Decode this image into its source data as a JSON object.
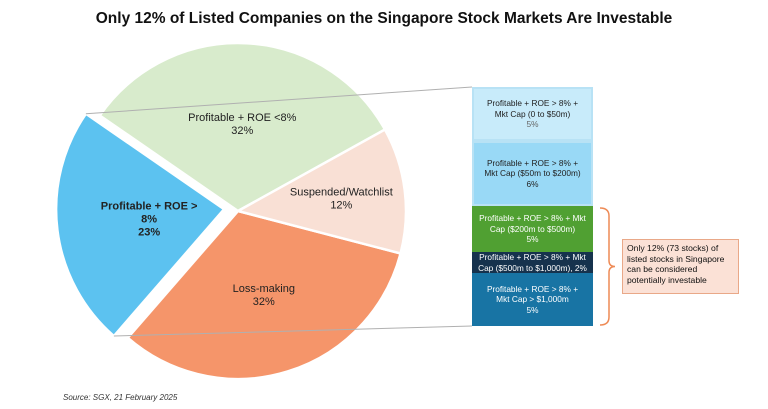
{
  "chart_data": {
    "type": "pie",
    "title": "Only 12% of Listed Companies on the Singapore Stock Markets Are Investable",
    "slices": [
      {
        "name": "Profitable + ROE <8%",
        "value": 32,
        "label": "32%",
        "color": "#d8ebcc"
      },
      {
        "name": "Profitable + ROE >8%",
        "value": 23,
        "label": "23%",
        "color": "#5cc2f0"
      },
      {
        "name": "Loss-making",
        "value": 32,
        "label": "32%",
        "color": "#f5956a"
      },
      {
        "name": "Suspended/Watchlist",
        "value": 12,
        "label": "12%",
        "color": "#f9e0d5"
      }
    ],
    "slice_label_lines": [
      [
        "Profitable + ROE <8%",
        "32%"
      ],
      [
        "Profitable + ROE >",
        "8%",
        "23%"
      ],
      [
        "Loss-making",
        "32%"
      ],
      [
        "Suspended/Watchlist",
        "12%"
      ]
    ],
    "breakdown_bar": {
      "parent": "Profitable + ROE >8%",
      "segments": [
        {
          "lines": [
            "Profitable + ROE > 8% +",
            "Mkt Cap (0 to $50m)",
            "5%"
          ],
          "value": 5,
          "color": "#c8ebfa",
          "text_color": "#222222",
          "pct_color": "#666666"
        },
        {
          "lines": [
            "Profitable + ROE > 8% +",
            "Mkt Cap ($50m to $200m)",
            "6%"
          ],
          "value": 6,
          "color": "#99d9f6",
          "text_color": "#222222",
          "pct_color": "#222222"
        },
        {
          "lines": [
            "Profitable + ROE > 8% + Mkt",
            "Cap ($200m to $500m)",
            "5%"
          ],
          "value": 5,
          "color": "#50a032",
          "text_color": "#ffffff",
          "pct_color": "#ffffff"
        },
        {
          "lines": [
            "Profitable + ROE > 8% + Mkt",
            "Cap ($500m to $1,000m), 2%"
          ],
          "value": 2,
          "color": "#16324d",
          "text_color": "#ffffff",
          "pct_color": "#ffffff"
        },
        {
          "lines": [
            "Profitable + ROE >  8% +",
            "Mkt Cap >  $1,000m",
            "5%"
          ],
          "value": 5,
          "color": "#1874a4",
          "text_color": "#ffffff",
          "pct_color": "#ffffff"
        }
      ]
    },
    "annotation": [
      "Only 12% (73 stocks) of",
      "listed stocks in Singapore",
      "can be considered",
      "potentially investable"
    ],
    "source": "Source: SGX, 21 February 2025"
  },
  "colors": {
    "connector": "#b0b0b0",
    "bracket": "#ee8a55"
  }
}
